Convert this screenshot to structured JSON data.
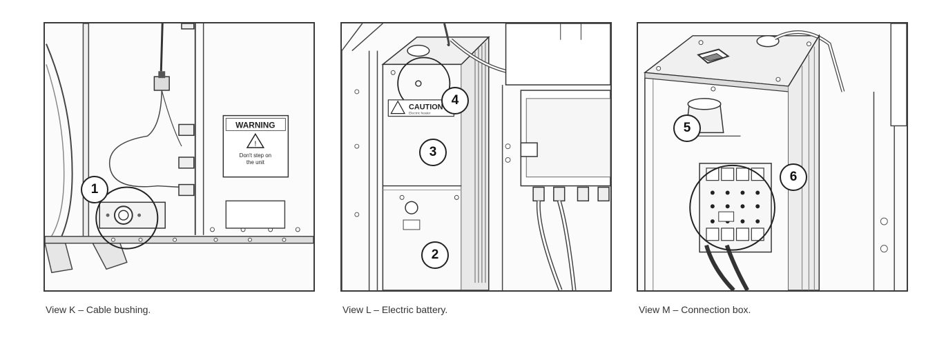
{
  "views": [
    {
      "caption": "View K – Cable bushing.",
      "callouts": [
        "1"
      ],
      "warning_sign": {
        "title": "WARNING",
        "line1": "Don't step on",
        "line2": "the unit"
      }
    },
    {
      "caption": "View L – Electric battery.",
      "callouts": [
        "2",
        "3",
        "4"
      ],
      "caution_label": {
        "title": "CAUTION",
        "sub": "Electric heater"
      }
    },
    {
      "caption": "View M – Connection box.",
      "callouts": [
        "5",
        "6"
      ]
    }
  ]
}
